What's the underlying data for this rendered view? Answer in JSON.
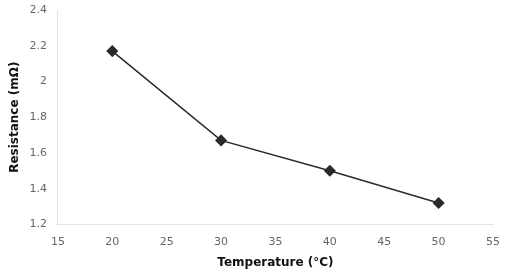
{
  "chart_data": {
    "type": "line",
    "x": [
      20,
      30,
      40,
      50
    ],
    "values": [
      2.17,
      1.67,
      1.5,
      1.32
    ],
    "xlabel": "Temperature (°C)",
    "ylabel": "Resistance (mΩ)",
    "xlim": [
      15,
      55
    ],
    "ylim": [
      1.2,
      2.4
    ],
    "xticks": [
      15,
      20,
      25,
      30,
      35,
      40,
      45,
      50,
      55
    ],
    "yticks": [
      1.2,
      1.4,
      1.6,
      1.8,
      2.0,
      2.2,
      2.4
    ],
    "color": "#2a2a2a",
    "marker": "diamond",
    "grid": false
  }
}
